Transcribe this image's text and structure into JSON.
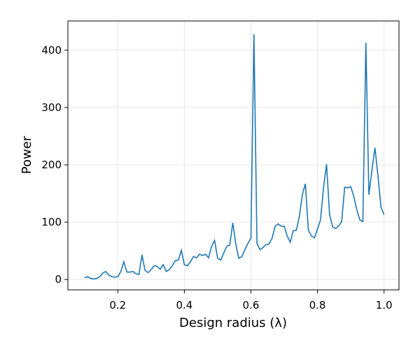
{
  "chart_data": {
    "type": "line",
    "x_label": "Design radius (λ)",
    "y_label": "Power",
    "xlim": [
      0.05,
      1.045
    ],
    "ylim": [
      -18,
      451
    ],
    "xticks": [
      0.2,
      0.4,
      0.6,
      0.8,
      {
        "value": 1,
        "label": "1.0"
      }
    ],
    "yticks": [
      0,
      100,
      200,
      300,
      400
    ],
    "grid": true,
    "series": [
      {
        "color": "#1f77b4",
        "x": [
          0.1,
          0.1091,
          0.1182,
          0.1273,
          0.1364,
          0.1455,
          0.1545,
          0.1636,
          0.1727,
          0.1818,
          0.1909,
          0.2,
          0.2091,
          0.2182,
          0.2273,
          0.2364,
          0.2455,
          0.2545,
          0.2636,
          0.2727,
          0.2818,
          0.2909,
          0.3,
          0.3091,
          0.3182,
          0.3273,
          0.3364,
          0.3455,
          0.3545,
          0.3636,
          0.3727,
          0.3818,
          0.3909,
          0.4,
          0.4091,
          0.4182,
          0.4273,
          0.4364,
          0.4455,
          0.4545,
          0.4636,
          0.4727,
          0.4818,
          0.4909,
          0.5,
          0.5091,
          0.5182,
          0.5273,
          0.5364,
          0.5455,
          0.5545,
          0.5636,
          0.5727,
          0.5818,
          0.5909,
          0.6,
          0.6091,
          0.6182,
          0.6273,
          0.6364,
          0.6455,
          0.6545,
          0.6636,
          0.6727,
          0.6818,
          0.6909,
          0.7,
          0.7091,
          0.7182,
          0.7273,
          0.7364,
          0.7455,
          0.7545,
          0.7636,
          0.7727,
          0.7818,
          0.7909,
          0.8,
          0.8091,
          0.8182,
          0.8273,
          0.8364,
          0.8455,
          0.8545,
          0.8636,
          0.8727,
          0.8818,
          0.8909,
          0.9,
          0.9091,
          0.9182,
          0.9273,
          0.9364,
          0.9455,
          0.9545,
          0.9636,
          0.9727,
          0.9818,
          0.9909,
          1.0
        ],
        "values": [
          3,
          5,
          2,
          1,
          2,
          5,
          11,
          14,
          8,
          5,
          4,
          5,
          14,
          31,
          13,
          13,
          14,
          10,
          9,
          43,
          16,
          12,
          17,
          24,
          23,
          18,
          26,
          14,
          17,
          24,
          33,
          34,
          51,
          26,
          24,
          31,
          40,
          38,
          44,
          42,
          44,
          38,
          58,
          68,
          37,
          34,
          46,
          58,
          60,
          99,
          62,
          37,
          40,
          52,
          63,
          72,
          428,
          63,
          52,
          56,
          61,
          62,
          72,
          93,
          97,
          93,
          93,
          76,
          65,
          85,
          86,
          110,
          148,
          167,
          86,
          76,
          73,
          88,
          104,
          160,
          201,
          113,
          92,
          89,
          93,
          101,
          161,
          160,
          162,
          145,
          122,
          104,
          101,
          413,
          148,
          190,
          230,
          181,
          126,
          113
        ]
      }
    ]
  }
}
